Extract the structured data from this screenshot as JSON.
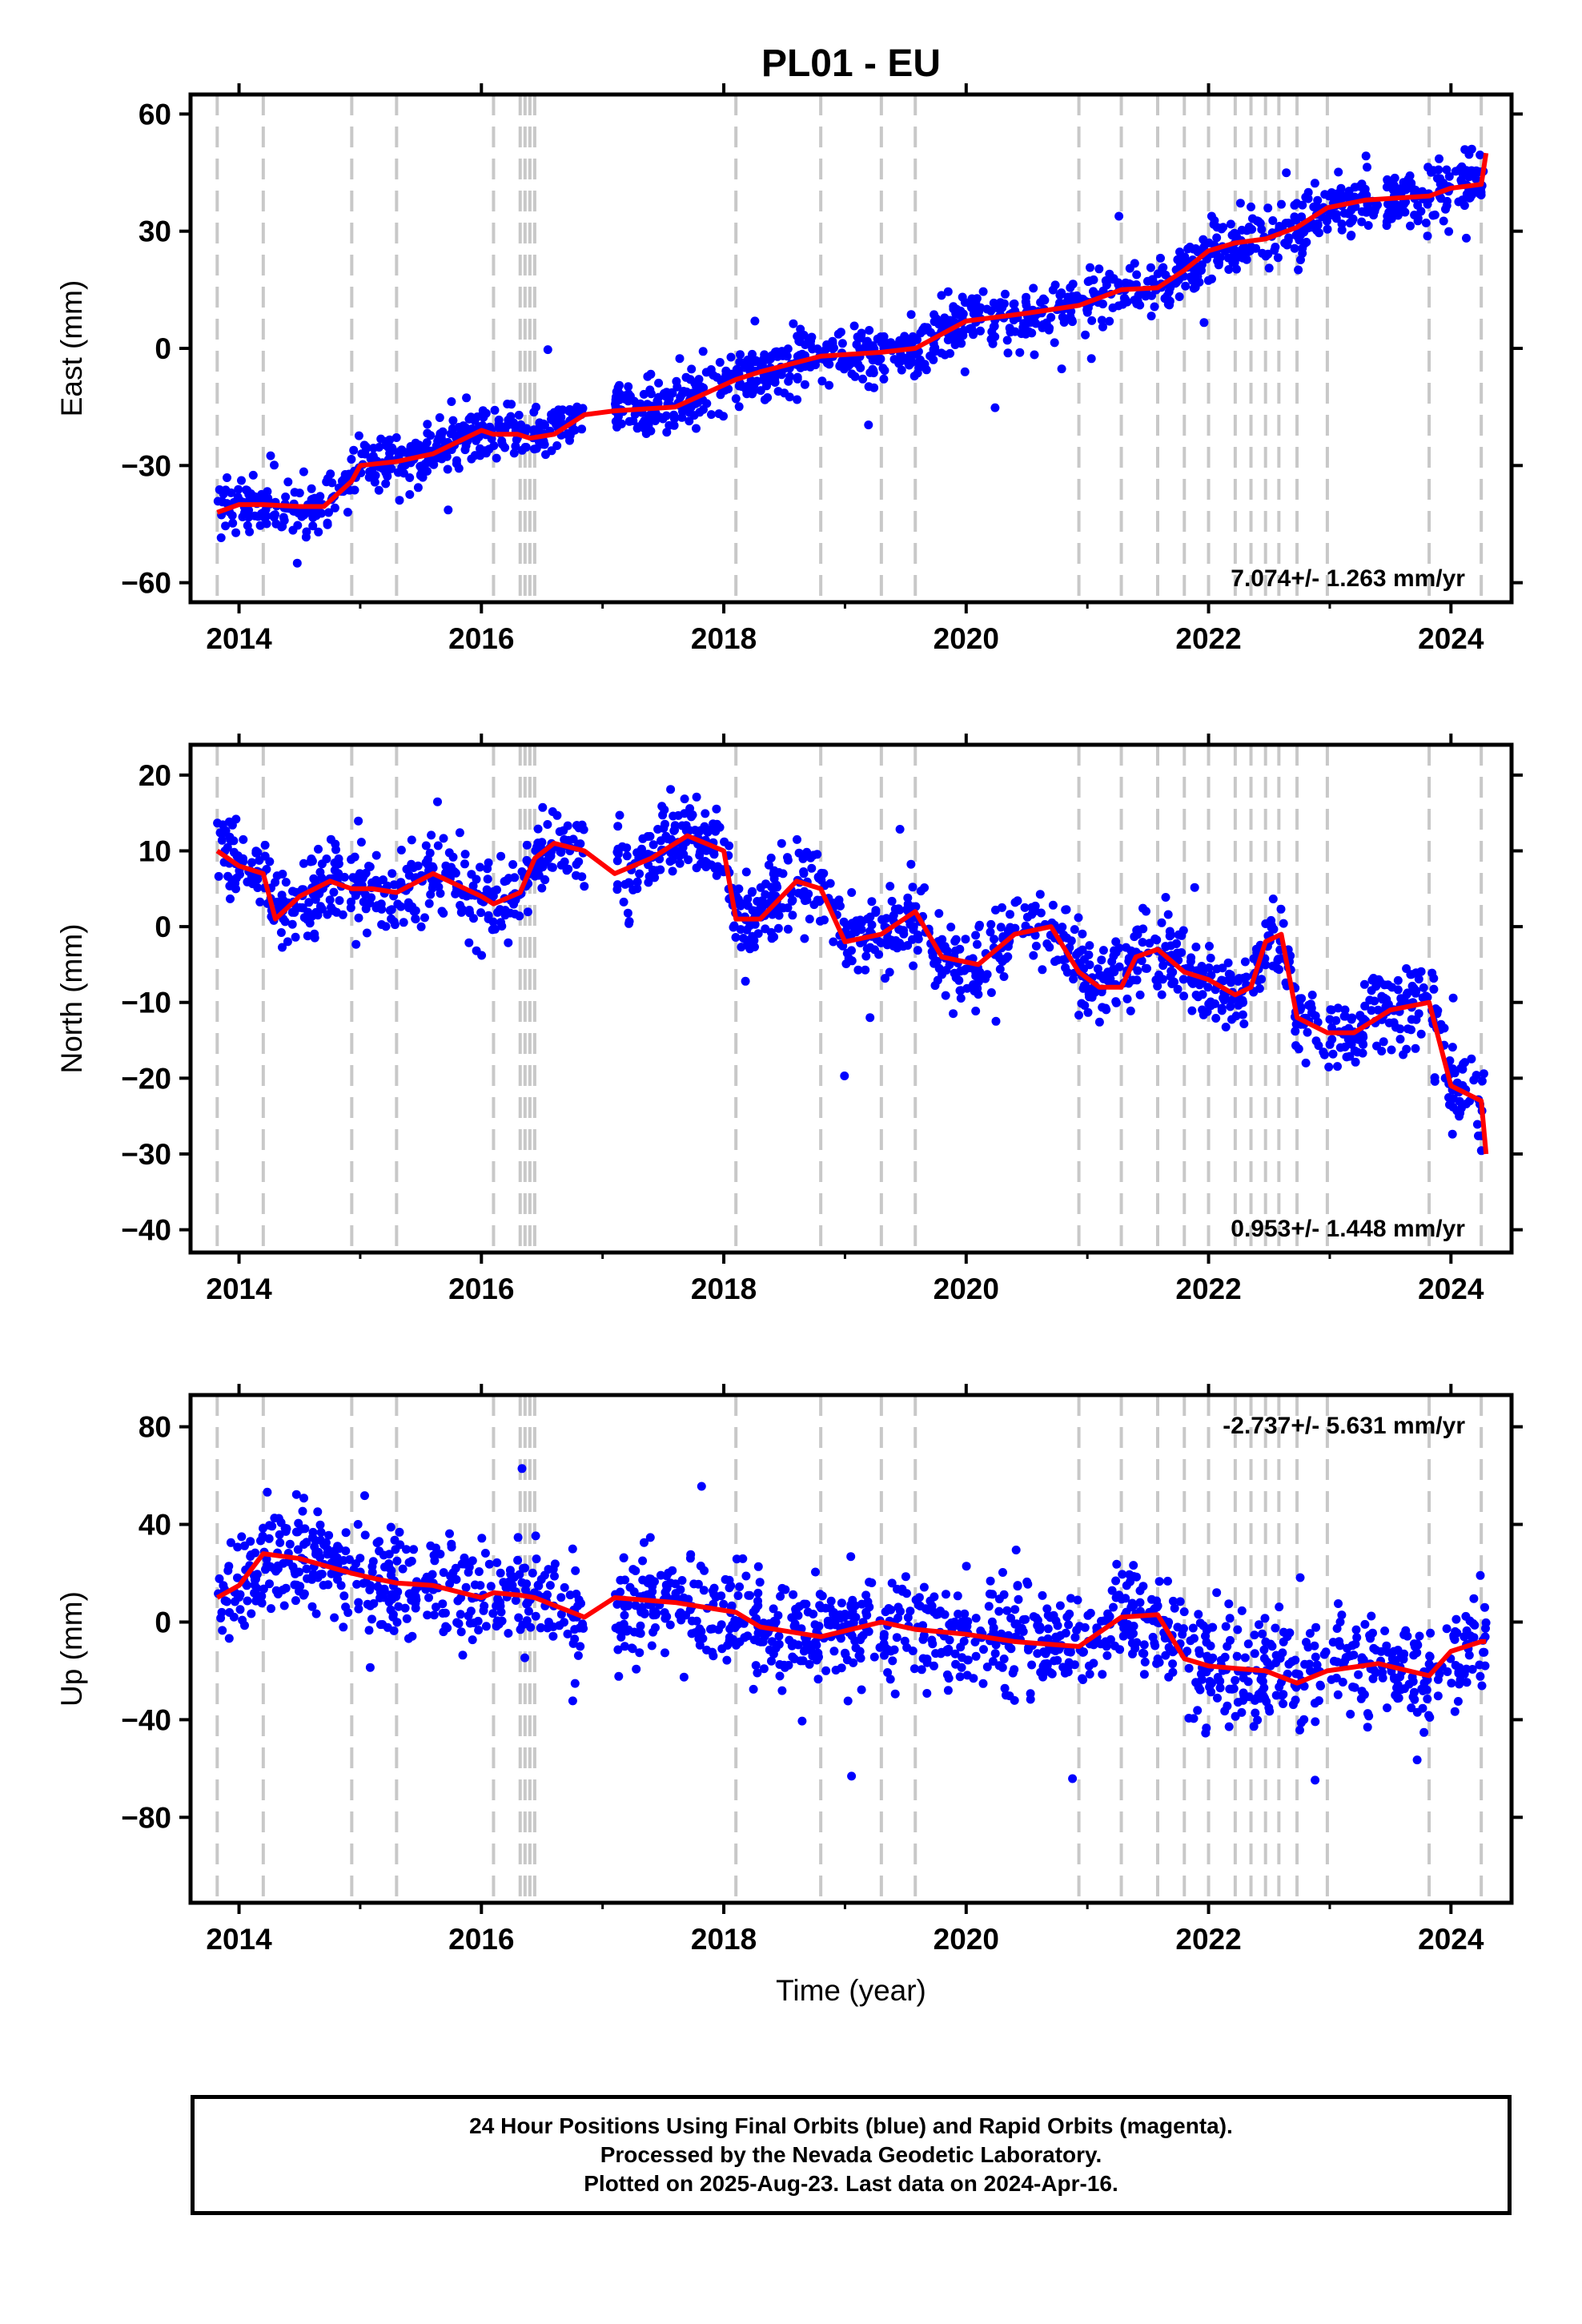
{
  "chart_data": {
    "type": "scatter",
    "title": "PL01 - EU",
    "xlabel": "Time (year)",
    "xlim": [
      2013.6,
      2024.5
    ],
    "x_ticks": [
      2014,
      2016,
      2018,
      2020,
      2022,
      2024
    ],
    "x_tick_labels": [
      "2014",
      "2016",
      "2018",
      "2020",
      "2022",
      "2024"
    ],
    "point_color": "#0000ff",
    "model_color": "#ff0000",
    "event_line_color": "#c8c8c8",
    "event_lines": [
      2013.82,
      2014.2,
      2014.93,
      2015.3,
      2016.1,
      2016.32,
      2016.36,
      2016.4,
      2016.44,
      2018.1,
      2018.8,
      2019.3,
      2019.58,
      2020.93,
      2021.28,
      2021.58,
      2021.8,
      2022.0,
      2022.22,
      2022.35,
      2022.47,
      2022.58,
      2022.73,
      2022.98,
      2023.82,
      2024.25
    ],
    "data_gaps": [
      [
        2016.85,
        2017.1
      ]
    ],
    "panels": [
      {
        "ylabel": "East (mm)",
        "ylim": [
          -65,
          65
        ],
        "y_ticks": [
          -60,
          -30,
          0,
          30,
          60
        ],
        "y_tick_labels": [
          "−60",
          "−30",
          "0",
          "30",
          "60"
        ],
        "rate_text": "7.074+/- 1.263 mm/yr",
        "rate_position": "bottom-right",
        "scatter_sd": 3.6,
        "model": {
          "x": [
            2013.82,
            2014.0,
            2014.2,
            2014.5,
            2014.7,
            2014.93,
            2015.0,
            2015.3,
            2015.6,
            2016.0,
            2016.1,
            2016.3,
            2016.4,
            2016.6,
            2016.85,
            2017.1,
            2017.6,
            2018.1,
            2018.3,
            2018.8,
            2019.3,
            2019.58,
            2020.0,
            2020.5,
            2020.93,
            2021.28,
            2021.58,
            2021.8,
            2022.0,
            2022.22,
            2022.47,
            2022.73,
            2022.98,
            2023.3,
            2023.82,
            2024.0,
            2024.25,
            2024.29
          ],
          "y": [
            -42,
            -40,
            -40,
            -40.5,
            -40.5,
            -34,
            -30,
            -29,
            -27,
            -21,
            -22,
            -22,
            -23,
            -22,
            -17,
            -16,
            -15,
            -8,
            -6,
            -2,
            -1,
            0,
            7,
            9,
            11,
            15,
            15.5,
            20,
            25,
            27,
            28,
            31,
            36,
            38,
            39,
            41,
            42,
            50
          ]
        }
      },
      {
        "ylabel": "North (mm)",
        "ylim": [
          -43,
          24
        ],
        "y_ticks": [
          -40,
          -30,
          -20,
          -10,
          0,
          10,
          20
        ],
        "y_tick_labels": [
          "−40",
          "−30",
          "−20",
          "−10",
          "0",
          "10",
          "20"
        ],
        "rate_text": "0.953+/- 1.448 mm/yr",
        "rate_position": "bottom-right",
        "scatter_sd": 2.6,
        "model": {
          "x": [
            2013.82,
            2014.0,
            2014.2,
            2014.3,
            2014.5,
            2014.75,
            2014.93,
            2015.1,
            2015.3,
            2015.6,
            2016.0,
            2016.1,
            2016.32,
            2016.44,
            2016.6,
            2016.85,
            2017.1,
            2017.4,
            2017.7,
            2018.0,
            2018.1,
            2018.3,
            2018.6,
            2018.8,
            2019.0,
            2019.3,
            2019.58,
            2019.8,
            2020.1,
            2020.4,
            2020.7,
            2020.93,
            2021.1,
            2021.28,
            2021.4,
            2021.58,
            2021.8,
            2022.0,
            2022.22,
            2022.35,
            2022.47,
            2022.6,
            2022.73,
            2022.98,
            2023.2,
            2023.5,
            2023.82,
            2024.0,
            2024.25,
            2024.29
          ],
          "y": [
            10,
            8,
            7,
            1,
            4,
            6,
            5,
            5,
            4.5,
            7,
            4,
            3,
            4.5,
            9,
            11,
            10,
            7,
            9,
            12,
            10,
            1,
            1,
            6,
            5,
            -2,
            -1,
            2,
            -4,
            -5,
            -1,
            0,
            -6,
            -8,
            -8,
            -4,
            -3,
            -6,
            -7,
            -9,
            -8,
            -2,
            -1,
            -12,
            -14,
            -14,
            -11,
            -10,
            -21,
            -23,
            -30
          ]
        }
      },
      {
        "ylabel": "Up (mm)",
        "ylim": [
          -115,
          93
        ],
        "y_ticks": [
          -80,
          -40,
          0,
          40,
          80
        ],
        "y_tick_labels": [
          "−80",
          "−40",
          "0",
          "40",
          "80"
        ],
        "rate_text": "-2.737+/- 5.631 mm/yr",
        "rate_position": "top-right",
        "scatter_sd": 11,
        "model": {
          "x": [
            2013.82,
            2014.0,
            2014.2,
            2014.5,
            2014.93,
            2015.1,
            2015.3,
            2015.6,
            2016.0,
            2016.1,
            2016.32,
            2016.44,
            2016.85,
            2017.1,
            2017.6,
            2018.1,
            2018.3,
            2018.8,
            2019.3,
            2019.58,
            2020.0,
            2020.4,
            2020.93,
            2021.28,
            2021.58,
            2021.8,
            2022.0,
            2022.22,
            2022.47,
            2022.73,
            2022.98,
            2023.4,
            2023.82,
            2024.0,
            2024.25,
            2024.29
          ],
          "y": [
            10,
            15,
            28,
            26,
            20,
            18,
            16,
            15,
            10,
            12,
            11,
            10,
            2,
            10,
            8,
            4,
            -2,
            -6,
            0,
            -3,
            -5,
            -8,
            -10,
            2,
            3,
            -15,
            -18,
            -19,
            -20,
            -25,
            -20,
            -17,
            -22,
            -12,
            -8,
            -8
          ]
        }
      }
    ]
  },
  "footer": {
    "line1": "24 Hour Positions Using Final Orbits (blue) and Rapid Orbits (magenta).",
    "line2": "Processed by the Nevada Geodetic Laboratory.",
    "line3": "Plotted on 2025-Aug-23. Last data on 2024-Apr-16."
  }
}
